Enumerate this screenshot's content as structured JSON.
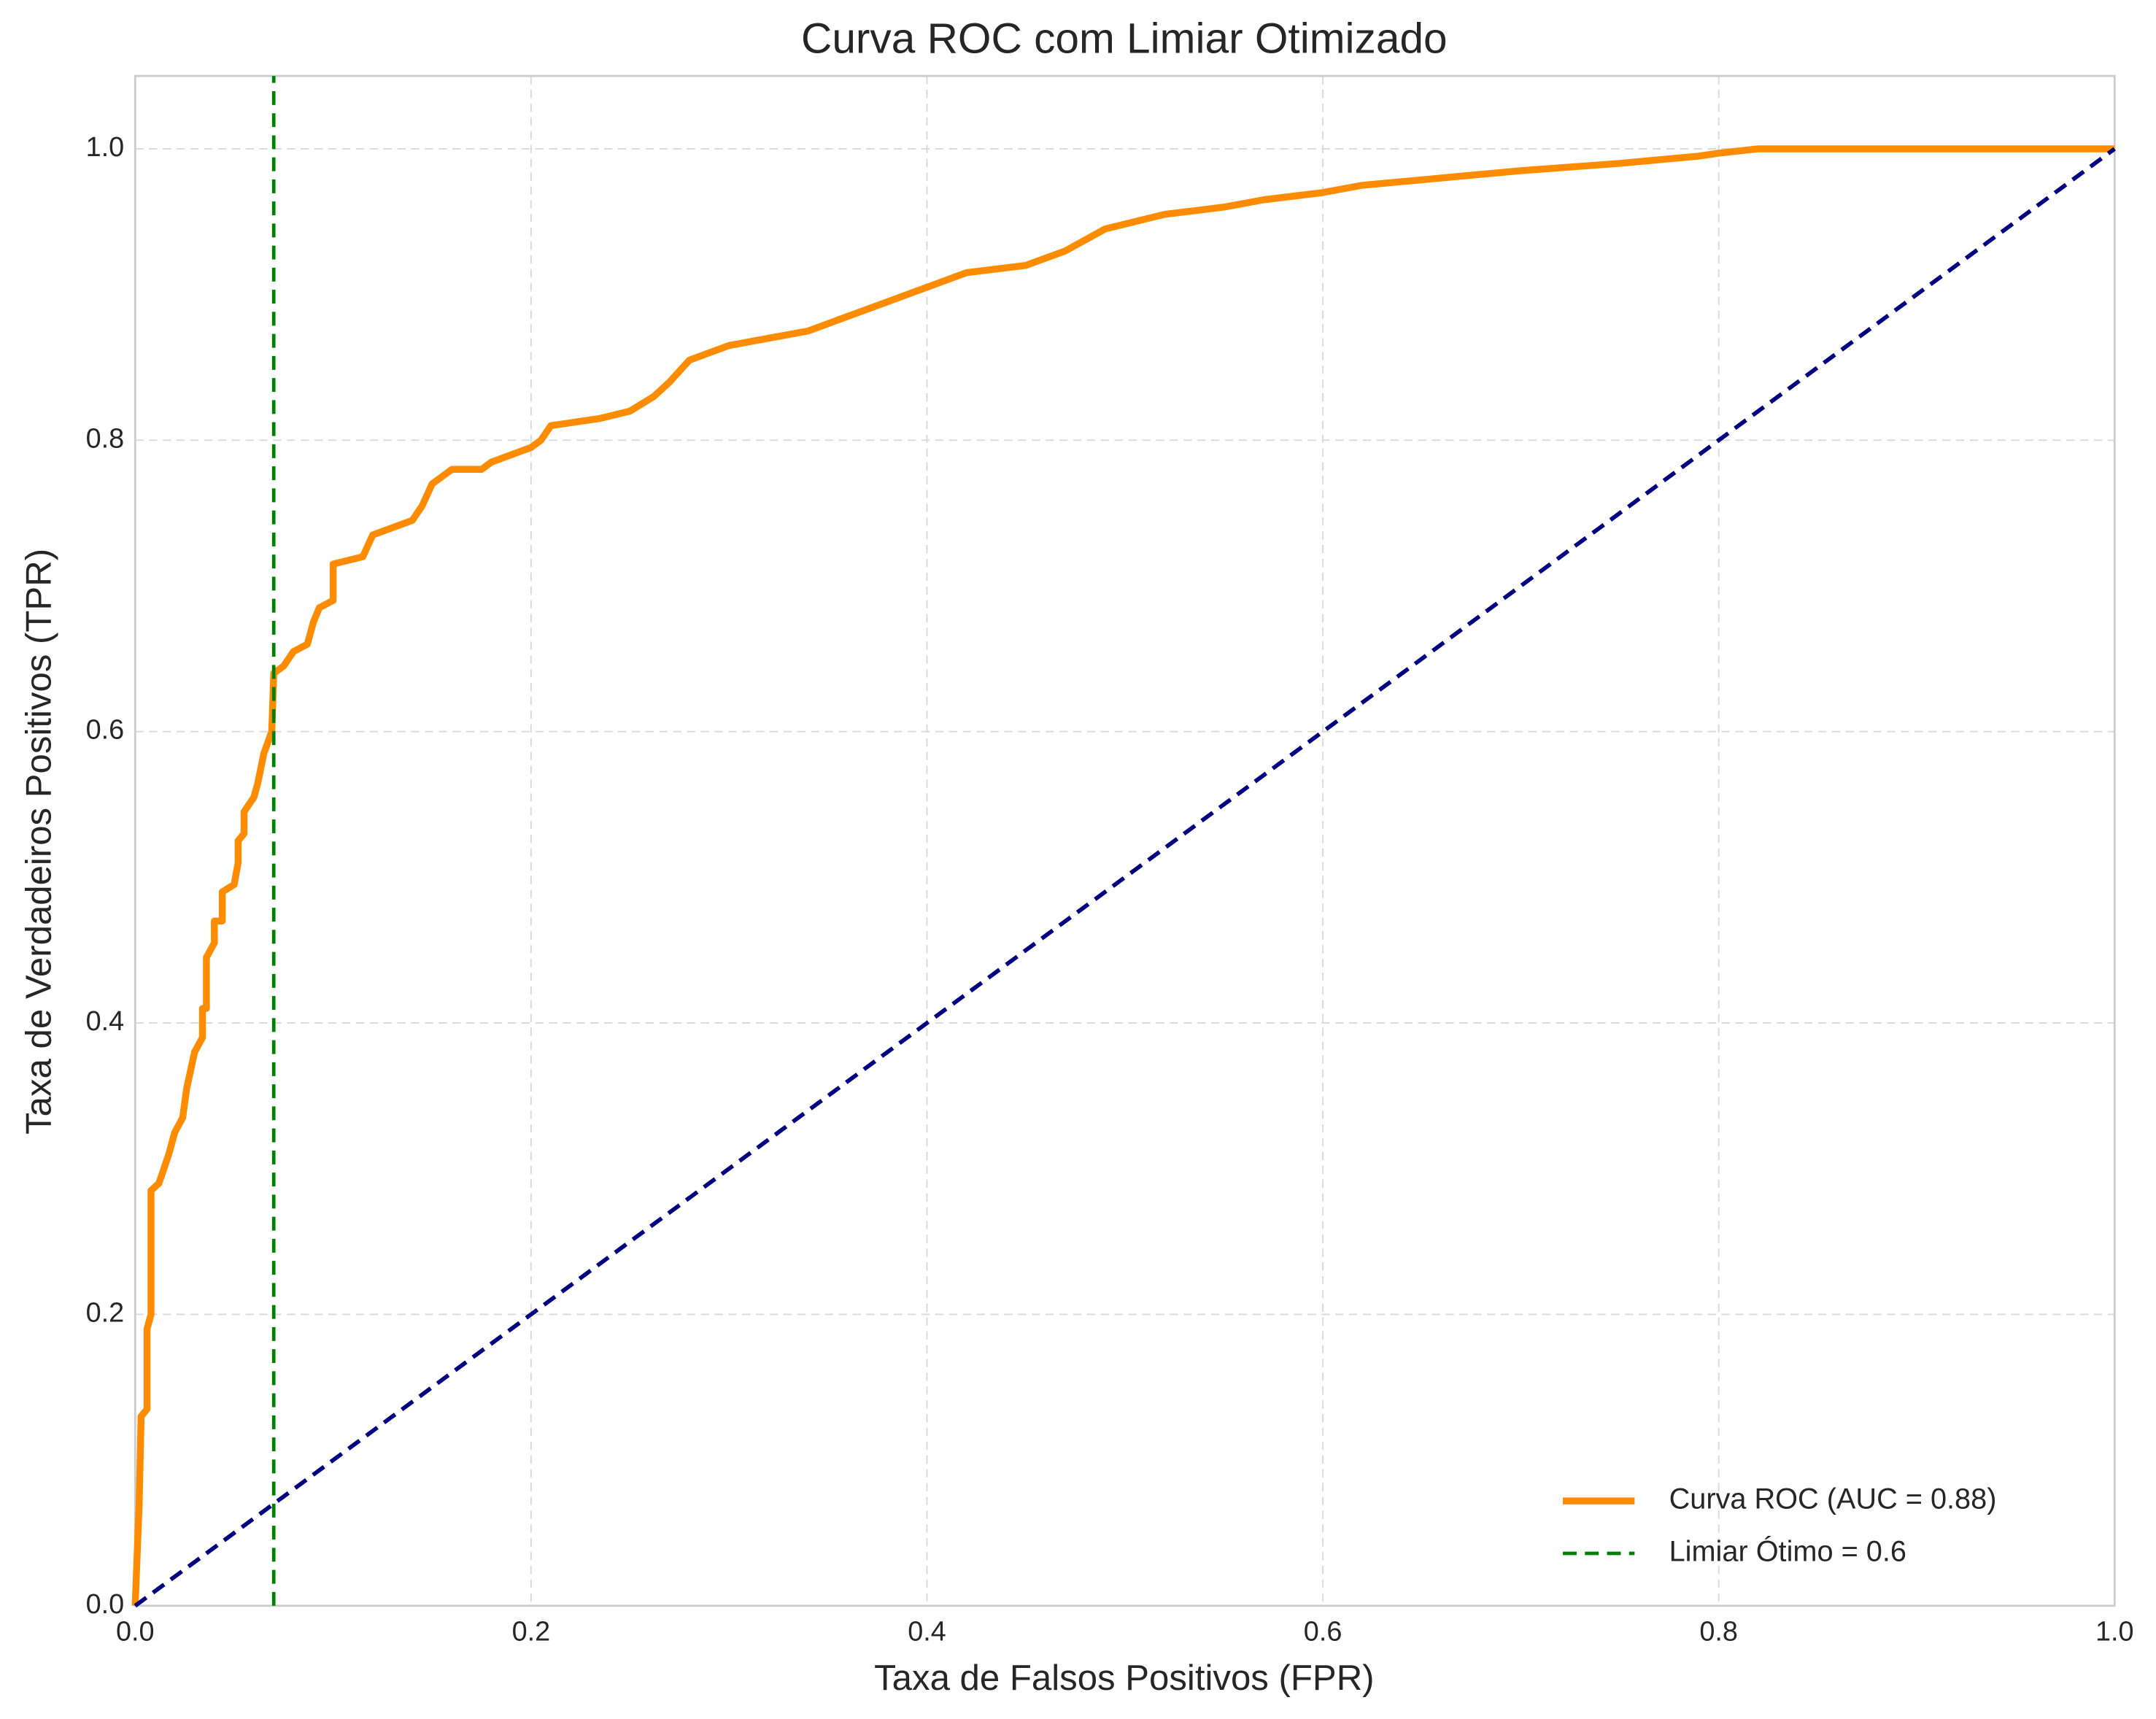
{
  "chart_data": {
    "type": "line",
    "title": "Curva ROC com Limiar Otimizado",
    "x_label": "Taxa de Falsos Positivos (FPR)",
    "y_label": "Taxa de Verdadeiros Positivos (TPR)",
    "xlim": [
      0,
      1
    ],
    "ylim": [
      0,
      1.05
    ],
    "xticks": [
      {
        "value": 0,
        "label": "0.0"
      },
      0.2,
      0.4,
      0.6,
      0.8,
      {
        "value": 1,
        "label": "1.0"
      }
    ],
    "yticks": [
      {
        "value": 0,
        "label": "0.0"
      },
      0.2,
      0.4,
      0.6,
      0.8,
      {
        "value": 1,
        "label": "1.0"
      }
    ],
    "grid": true,
    "legend": "lower right",
    "series": [
      {
        "name": "Curva ROC (AUC = 0.88)",
        "color": "#ff8c00",
        "width": 5,
        "x": [
          0,
          0.002,
          0.003,
          0.006,
          0.006,
          0.008,
          0.008,
          0.012,
          0.017,
          0.02,
          0.024,
          0.026,
          0.03,
          0.034,
          0.034,
          0.036,
          0.036,
          0.04,
          0.04,
          0.044,
          0.044,
          0.05,
          0.052,
          0.052,
          0.055,
          0.055,
          0.06,
          0.062,
          0.065,
          0.069,
          0.07,
          0.075,
          0.08,
          0.087,
          0.09,
          0.093,
          0.1,
          0.1,
          0.115,
          0.12,
          0.13,
          0.14,
          0.145,
          0.15,
          0.16,
          0.175,
          0.18,
          0.2,
          0.205,
          0.21,
          0.235,
          0.25,
          0.262,
          0.27,
          0.28,
          0.3,
          0.32,
          0.34,
          0.36,
          0.38,
          0.4,
          0.42,
          0.45,
          0.47,
          0.49,
          0.52,
          0.55,
          0.57,
          0.6,
          0.62,
          0.66,
          0.7,
          0.75,
          0.79,
          0.8,
          0.82,
          1
        ],
        "values": [
          0,
          0.07,
          0.13,
          0.135,
          0.19,
          0.2,
          0.285,
          0.29,
          0.31,
          0.325,
          0.335,
          0.355,
          0.38,
          0.39,
          0.41,
          0.41,
          0.445,
          0.455,
          0.47,
          0.47,
          0.49,
          0.495,
          0.51,
          0.525,
          0.53,
          0.545,
          0.555,
          0.565,
          0.585,
          0.6,
          0.64,
          0.645,
          0.655,
          0.66,
          0.675,
          0.685,
          0.69,
          0.715,
          0.72,
          0.735,
          0.74,
          0.745,
          0.755,
          0.77,
          0.78,
          0.78,
          0.785,
          0.795,
          0.8,
          0.81,
          0.815,
          0.82,
          0.83,
          0.84,
          0.855,
          0.865,
          0.87,
          0.875,
          0.885,
          0.895,
          0.905,
          0.915,
          0.92,
          0.93,
          0.945,
          0.955,
          0.96,
          0.965,
          0.97,
          0.975,
          0.98,
          0.985,
          0.99,
          0.995,
          0.997,
          1,
          1
        ]
      },
      {
        "color": "#000080",
        "width": 3,
        "dash": true,
        "x": [
          0,
          1
        ],
        "values": [
          0,
          1
        ]
      },
      {
        "name": "Limiar Ótimo = 0.6",
        "color": "#008000",
        "width": 2.5,
        "dash": true,
        "x": [
          0.07,
          0.07
        ],
        "values": [
          0,
          1.05
        ]
      }
    ]
  }
}
